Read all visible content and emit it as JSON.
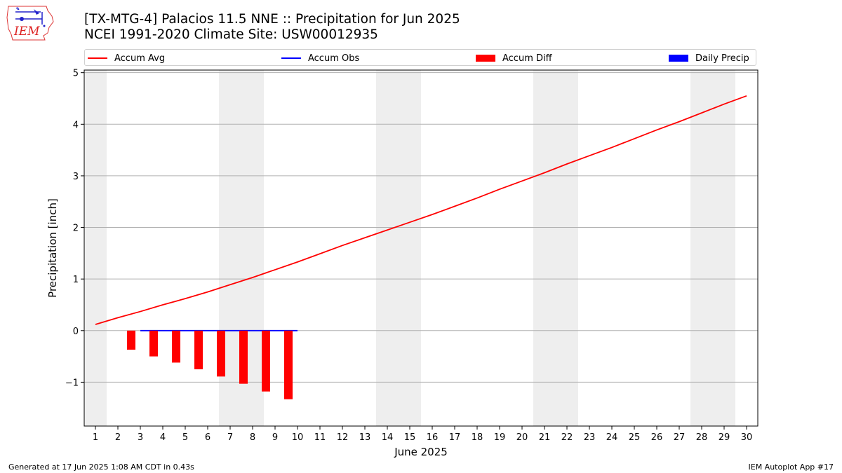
{
  "header": {
    "title_line1": "[TX-MTG-4] Palacios 11.5 NNE :: Precipitation for Jun 2025",
    "title_line2": "NCEI 1991-2020 Climate Site: USW00012935"
  },
  "logo": {
    "text": "IEM",
    "icon": "iem-iowa-logo-icon"
  },
  "legend": [
    {
      "label": "Accum Avg",
      "color": "#ff0000",
      "kind": "line"
    },
    {
      "label": "Accum Obs",
      "color": "#0000ff",
      "kind": "line"
    },
    {
      "label": "Accum Diff",
      "color": "#ff0000",
      "kind": "patch"
    },
    {
      "label": "Daily Precip",
      "color": "#0000ff",
      "kind": "patch"
    }
  ],
  "footer": {
    "left": "Generated at 17 Jun 2025 1:08 AM CDT in 0.43s",
    "right": "IEM Autoplot App #17"
  },
  "chart_data": {
    "type": "line",
    "xlabel": "June 2025",
    "ylabel": "Precipitation [inch]",
    "xlim": [
      0.5,
      30.5
    ],
    "ylim": [
      -1.85,
      5.05
    ],
    "yticks": [
      -1,
      0,
      1,
      2,
      3,
      4,
      5
    ],
    "ytick_labels": [
      "−1",
      "0",
      "1",
      "2",
      "3",
      "4",
      "5"
    ],
    "x": [
      1,
      2,
      3,
      4,
      5,
      6,
      7,
      8,
      9,
      10,
      11,
      12,
      13,
      14,
      15,
      16,
      17,
      18,
      19,
      20,
      21,
      22,
      23,
      24,
      25,
      26,
      27,
      28,
      29,
      30
    ],
    "grid": "horizontal",
    "weekend_shading": [
      [
        0.5,
        1.5
      ],
      [
        6.5,
        8.5
      ],
      [
        13.5,
        15.5
      ],
      [
        20.5,
        22.5
      ],
      [
        27.5,
        29.5
      ]
    ],
    "shading_color": "#eeeeee",
    "series": [
      {
        "name": "Accum Avg",
        "type": "line",
        "color": "#ff0000",
        "x": [
          1,
          2,
          3,
          4,
          5,
          6,
          7,
          8,
          9,
          10,
          11,
          12,
          13,
          14,
          15,
          16,
          17,
          18,
          19,
          20,
          21,
          22,
          23,
          24,
          25,
          26,
          27,
          28,
          29,
          30
        ],
        "values": [
          0.12,
          0.25,
          0.37,
          0.5,
          0.62,
          0.75,
          0.89,
          1.03,
          1.18,
          1.33,
          1.49,
          1.65,
          1.8,
          1.95,
          2.1,
          2.25,
          2.41,
          2.57,
          2.74,
          2.9,
          3.06,
          3.23,
          3.39,
          3.55,
          3.72,
          3.89,
          4.05,
          4.22,
          4.39,
          4.55
        ]
      },
      {
        "name": "Accum Obs",
        "type": "line",
        "color": "#0000ff",
        "x": [
          3,
          4,
          5,
          6,
          7,
          8,
          9,
          10
        ],
        "values": [
          0,
          0,
          0,
          0,
          0,
          0,
          0,
          0
        ]
      },
      {
        "name": "Accum Diff",
        "type": "bar",
        "color": "#ff0000",
        "x": [
          3,
          4,
          5,
          6,
          7,
          8,
          9,
          10
        ],
        "values": [
          -0.37,
          -0.5,
          -0.62,
          -0.75,
          -0.89,
          -1.03,
          -1.18,
          -1.33
        ]
      },
      {
        "name": "Daily Precip",
        "type": "bar",
        "color": "#0000ff",
        "x": [
          3,
          4,
          5,
          6,
          7,
          8,
          9,
          10
        ],
        "values": [
          0,
          0,
          0,
          0,
          0,
          0,
          0,
          0
        ]
      }
    ]
  }
}
